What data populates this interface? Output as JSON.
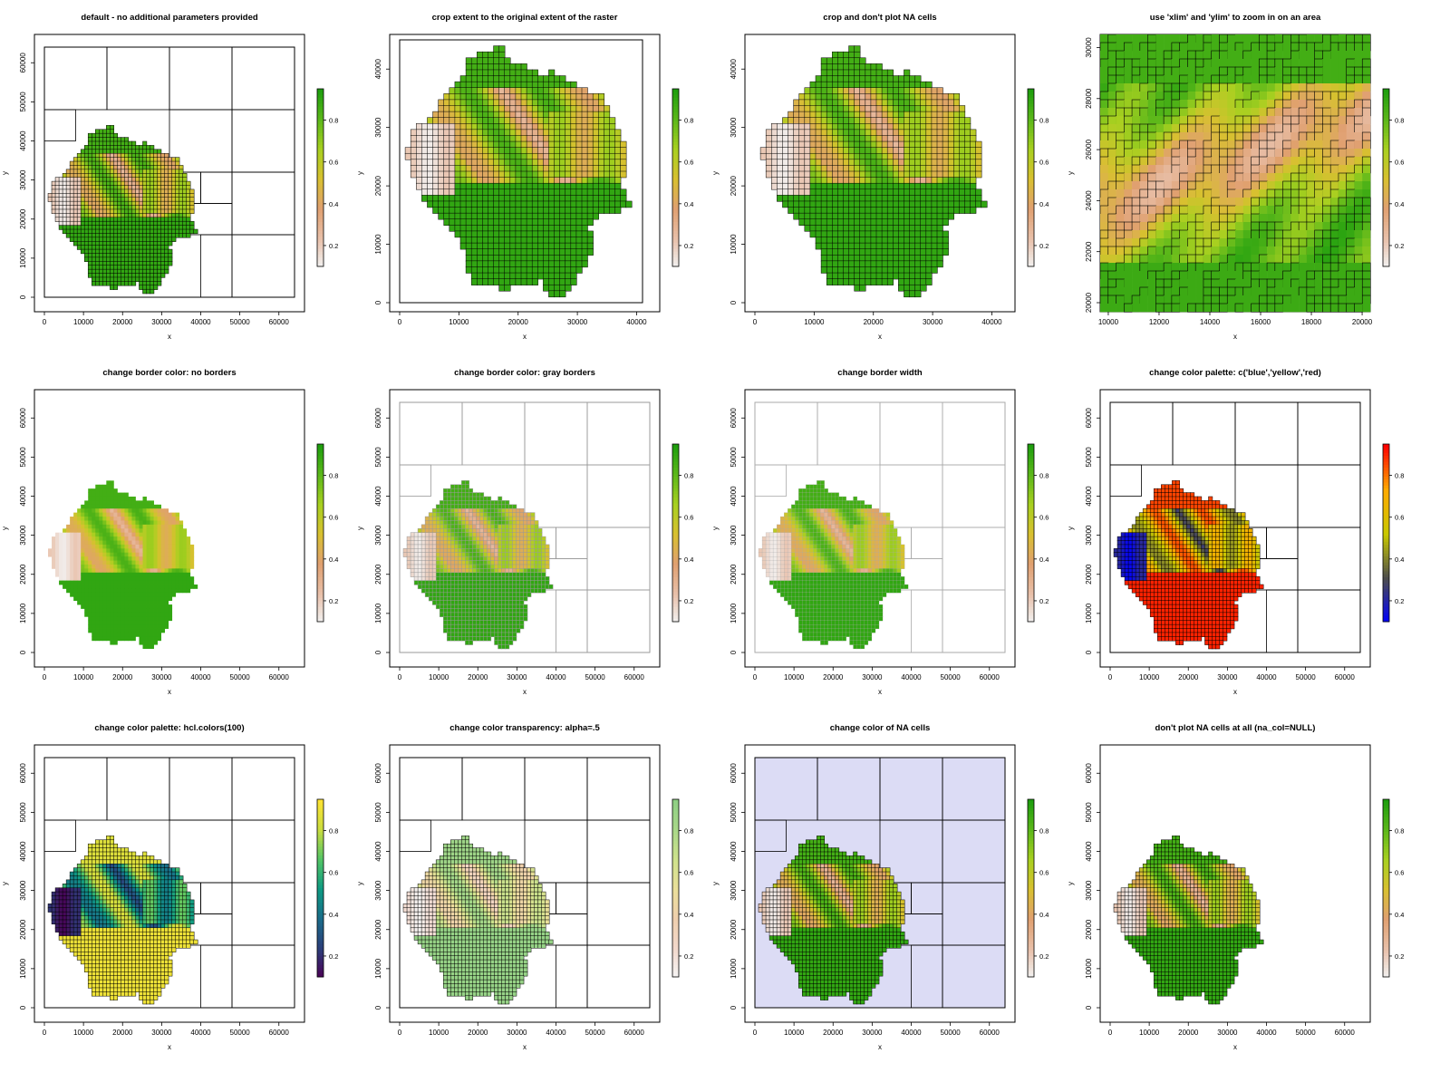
{
  "figure": {
    "panels": [
      {
        "title": "default - no additional parameters provided",
        "palette": "terrain",
        "xticks": [
          "0",
          "10000",
          "20000",
          "30000",
          "40000",
          "50000",
          "60000"
        ],
        "yticks": [
          "0",
          "10000",
          "20000",
          "30000",
          "40000",
          "50000",
          "60000"
        ],
        "xlabel": "x",
        "ylabel": "y",
        "legend_ticks": [
          "0.2",
          "0.4",
          "0.6",
          "0.8"
        ]
      },
      {
        "title": "crop extent to the original extent of the raster",
        "palette": "terrain",
        "xticks": [
          "0",
          "10000",
          "20000",
          "30000",
          "40000"
        ],
        "yticks": [
          "0",
          "10000",
          "20000",
          "30000",
          "40000"
        ],
        "xlabel": "x",
        "ylabel": "y",
        "legend_ticks": [
          "0.2",
          "0.4",
          "0.6",
          "0.8"
        ]
      },
      {
        "title": "crop and don't plot NA cells",
        "palette": "terrain",
        "xticks": [
          "0",
          "10000",
          "20000",
          "30000",
          "40000"
        ],
        "yticks": [
          "0",
          "10000",
          "20000",
          "30000",
          "40000"
        ],
        "xlabel": "x",
        "ylabel": "y",
        "legend_ticks": [
          "0.2",
          "0.4",
          "0.6",
          "0.8"
        ]
      },
      {
        "title": "use 'xlim' and 'ylim' to zoom in on an area",
        "palette": "terrain",
        "xticks": [
          "10000",
          "12000",
          "14000",
          "16000",
          "18000",
          "20000"
        ],
        "yticks": [
          "20000",
          "22000",
          "24000",
          "26000",
          "28000",
          "30000"
        ],
        "xlabel": "x",
        "ylabel": "y",
        "legend_ticks": [
          "0.2",
          "0.4",
          "0.6",
          "0.8"
        ]
      },
      {
        "title": "change border color: no borders",
        "palette": "terrain",
        "xticks": [
          "0",
          "10000",
          "20000",
          "30000",
          "40000",
          "50000",
          "60000"
        ],
        "yticks": [
          "0",
          "10000",
          "20000",
          "30000",
          "40000",
          "50000",
          "60000"
        ],
        "xlabel": "x",
        "ylabel": "y",
        "legend_ticks": [
          "0.2",
          "0.4",
          "0.6",
          "0.8"
        ]
      },
      {
        "title": "change border color: gray borders",
        "palette": "terrain",
        "xticks": [
          "0",
          "10000",
          "20000",
          "30000",
          "40000",
          "50000",
          "60000"
        ],
        "yticks": [
          "0",
          "10000",
          "20000",
          "30000",
          "40000",
          "50000",
          "60000"
        ],
        "xlabel": "x",
        "ylabel": "y",
        "legend_ticks": [
          "0.2",
          "0.4",
          "0.6",
          "0.8"
        ]
      },
      {
        "title": "change border width",
        "palette": "terrain",
        "xticks": [
          "0",
          "10000",
          "20000",
          "30000",
          "40000",
          "50000",
          "60000"
        ],
        "yticks": [
          "0",
          "10000",
          "20000",
          "30000",
          "40000",
          "50000",
          "60000"
        ],
        "xlabel": "x",
        "ylabel": "y",
        "legend_ticks": [
          "0.2",
          "0.4",
          "0.6",
          "0.8"
        ]
      },
      {
        "title": "change color palette: c('blue','yellow','red)",
        "palette": "blue-yellow-red",
        "xticks": [
          "0",
          "10000",
          "20000",
          "30000",
          "40000",
          "50000",
          "60000"
        ],
        "yticks": [
          "0",
          "10000",
          "20000",
          "30000",
          "40000",
          "50000",
          "60000"
        ],
        "xlabel": "x",
        "ylabel": "y",
        "legend_ticks": [
          "0.2",
          "0.4",
          "0.6",
          "0.8"
        ]
      },
      {
        "title": "change color palette: hcl.colors(100)",
        "palette": "viridis",
        "xticks": [
          "0",
          "10000",
          "20000",
          "30000",
          "40000",
          "50000",
          "60000"
        ],
        "yticks": [
          "0",
          "10000",
          "20000",
          "30000",
          "40000",
          "50000",
          "60000"
        ],
        "xlabel": "x",
        "ylabel": "y",
        "legend_ticks": [
          "0.2",
          "0.4",
          "0.6",
          "0.8"
        ]
      },
      {
        "title": "change color transparency: alpha=.5",
        "palette": "terrain-alpha",
        "xticks": [
          "0",
          "10000",
          "20000",
          "30000",
          "40000",
          "50000",
          "60000"
        ],
        "yticks": [
          "0",
          "10000",
          "20000",
          "30000",
          "40000",
          "50000",
          "60000"
        ],
        "xlabel": "x",
        "ylabel": "y",
        "legend_ticks": [
          "0.2",
          "0.4",
          "0.6",
          "0.8"
        ]
      },
      {
        "title": "change color of NA cells",
        "palette": "terrain",
        "na_fill": "#dcdcf5",
        "xticks": [
          "0",
          "10000",
          "20000",
          "30000",
          "40000",
          "50000",
          "60000"
        ],
        "yticks": [
          "0",
          "10000",
          "20000",
          "30000",
          "40000",
          "50000",
          "60000"
        ],
        "xlabel": "x",
        "ylabel": "y",
        "legend_ticks": [
          "0.2",
          "0.4",
          "0.6",
          "0.8"
        ]
      },
      {
        "title": "don't plot NA cells at all (na_col=NULL)",
        "palette": "terrain",
        "xticks": [
          "0",
          "10000",
          "20000",
          "30000",
          "40000",
          "50000",
          "60000"
        ],
        "yticks": [
          "0",
          "10000",
          "20000",
          "30000",
          "40000",
          "50000",
          "60000"
        ],
        "xlabel": "x",
        "ylabel": "y",
        "legend_ticks": [
          "0.2",
          "0.4",
          "0.6",
          "0.8"
        ]
      }
    ]
  },
  "chart_data": [
    {
      "type": "heatmap",
      "title": "default - no additional parameters provided",
      "xlabel": "x",
      "ylabel": "y",
      "xlim": [
        0,
        64000
      ],
      "ylim": [
        0,
        64000
      ],
      "colorbar_range": [
        0.1,
        0.95
      ],
      "borders": "black",
      "na_color": "white"
    },
    {
      "type": "heatmap",
      "title": "crop extent to the original extent of the raster",
      "xlabel": "x",
      "ylabel": "y",
      "xlim": [
        0,
        41000
      ],
      "ylim": [
        0,
        45000
      ],
      "colorbar_range": [
        0.1,
        0.95
      ],
      "borders": "black",
      "na_color": "white"
    },
    {
      "type": "heatmap",
      "title": "crop and don't plot NA cells",
      "xlabel": "x",
      "ylabel": "y",
      "xlim": [
        0,
        41000
      ],
      "ylim": [
        0,
        45000
      ],
      "colorbar_range": [
        0.1,
        0.95
      ],
      "borders": "black",
      "na_color": "none"
    },
    {
      "type": "heatmap",
      "title": "use 'xlim' and 'ylim' to zoom in on an area",
      "xlabel": "x",
      "ylabel": "y",
      "xlim": [
        10000,
        20000
      ],
      "ylim": [
        20000,
        30000
      ],
      "colorbar_range": [
        0.1,
        0.95
      ],
      "borders": "black"
    },
    {
      "type": "heatmap",
      "title": "change border color: no borders",
      "xlabel": "x",
      "ylabel": "y",
      "xlim": [
        0,
        64000
      ],
      "ylim": [
        0,
        64000
      ],
      "colorbar_range": [
        0.1,
        0.95
      ],
      "borders": "none"
    },
    {
      "type": "heatmap",
      "title": "change border color: gray borders",
      "xlabel": "x",
      "ylabel": "y",
      "xlim": [
        0,
        64000
      ],
      "ylim": [
        0,
        64000
      ],
      "colorbar_range": [
        0.1,
        0.95
      ],
      "borders": "gray"
    },
    {
      "type": "heatmap",
      "title": "change border width",
      "xlabel": "x",
      "ylabel": "y",
      "xlim": [
        0,
        64000
      ],
      "ylim": [
        0,
        64000
      ],
      "colorbar_range": [
        0.1,
        0.95
      ],
      "borders": "gray-thin"
    },
    {
      "type": "heatmap",
      "title": "change color palette: c('blue','yellow','red)",
      "xlabel": "x",
      "ylabel": "y",
      "xlim": [
        0,
        64000
      ],
      "ylim": [
        0,
        64000
      ],
      "colorbar_range": [
        0.1,
        0.95
      ],
      "palette": [
        "blue",
        "yellow",
        "red"
      ]
    },
    {
      "type": "heatmap",
      "title": "change color palette: hcl.colors(100)",
      "xlabel": "x",
      "ylabel": "y",
      "xlim": [
        0,
        64000
      ],
      "ylim": [
        0,
        64000
      ],
      "colorbar_range": [
        0.1,
        0.95
      ],
      "palette": "viridis"
    },
    {
      "type": "heatmap",
      "title": "change color transparency: alpha=.5",
      "xlabel": "x",
      "ylabel": "y",
      "xlim": [
        0,
        64000
      ],
      "ylim": [
        0,
        64000
      ],
      "colorbar_range": [
        0.1,
        0.95
      ],
      "alpha": 0.5
    },
    {
      "type": "heatmap",
      "title": "change color of NA cells",
      "xlabel": "x",
      "ylabel": "y",
      "xlim": [
        0,
        64000
      ],
      "ylim": [
        0,
        64000
      ],
      "colorbar_range": [
        0.1,
        0.95
      ],
      "na_color": "#dcdcf5"
    },
    {
      "type": "heatmap",
      "title": "don't plot NA cells at all (na_col=NULL)",
      "xlabel": "x",
      "ylabel": "y",
      "xlim": [
        0,
        64000
      ],
      "ylim": [
        0,
        64000
      ],
      "colorbar_range": [
        0.1,
        0.95
      ],
      "na_color": "none"
    }
  ]
}
